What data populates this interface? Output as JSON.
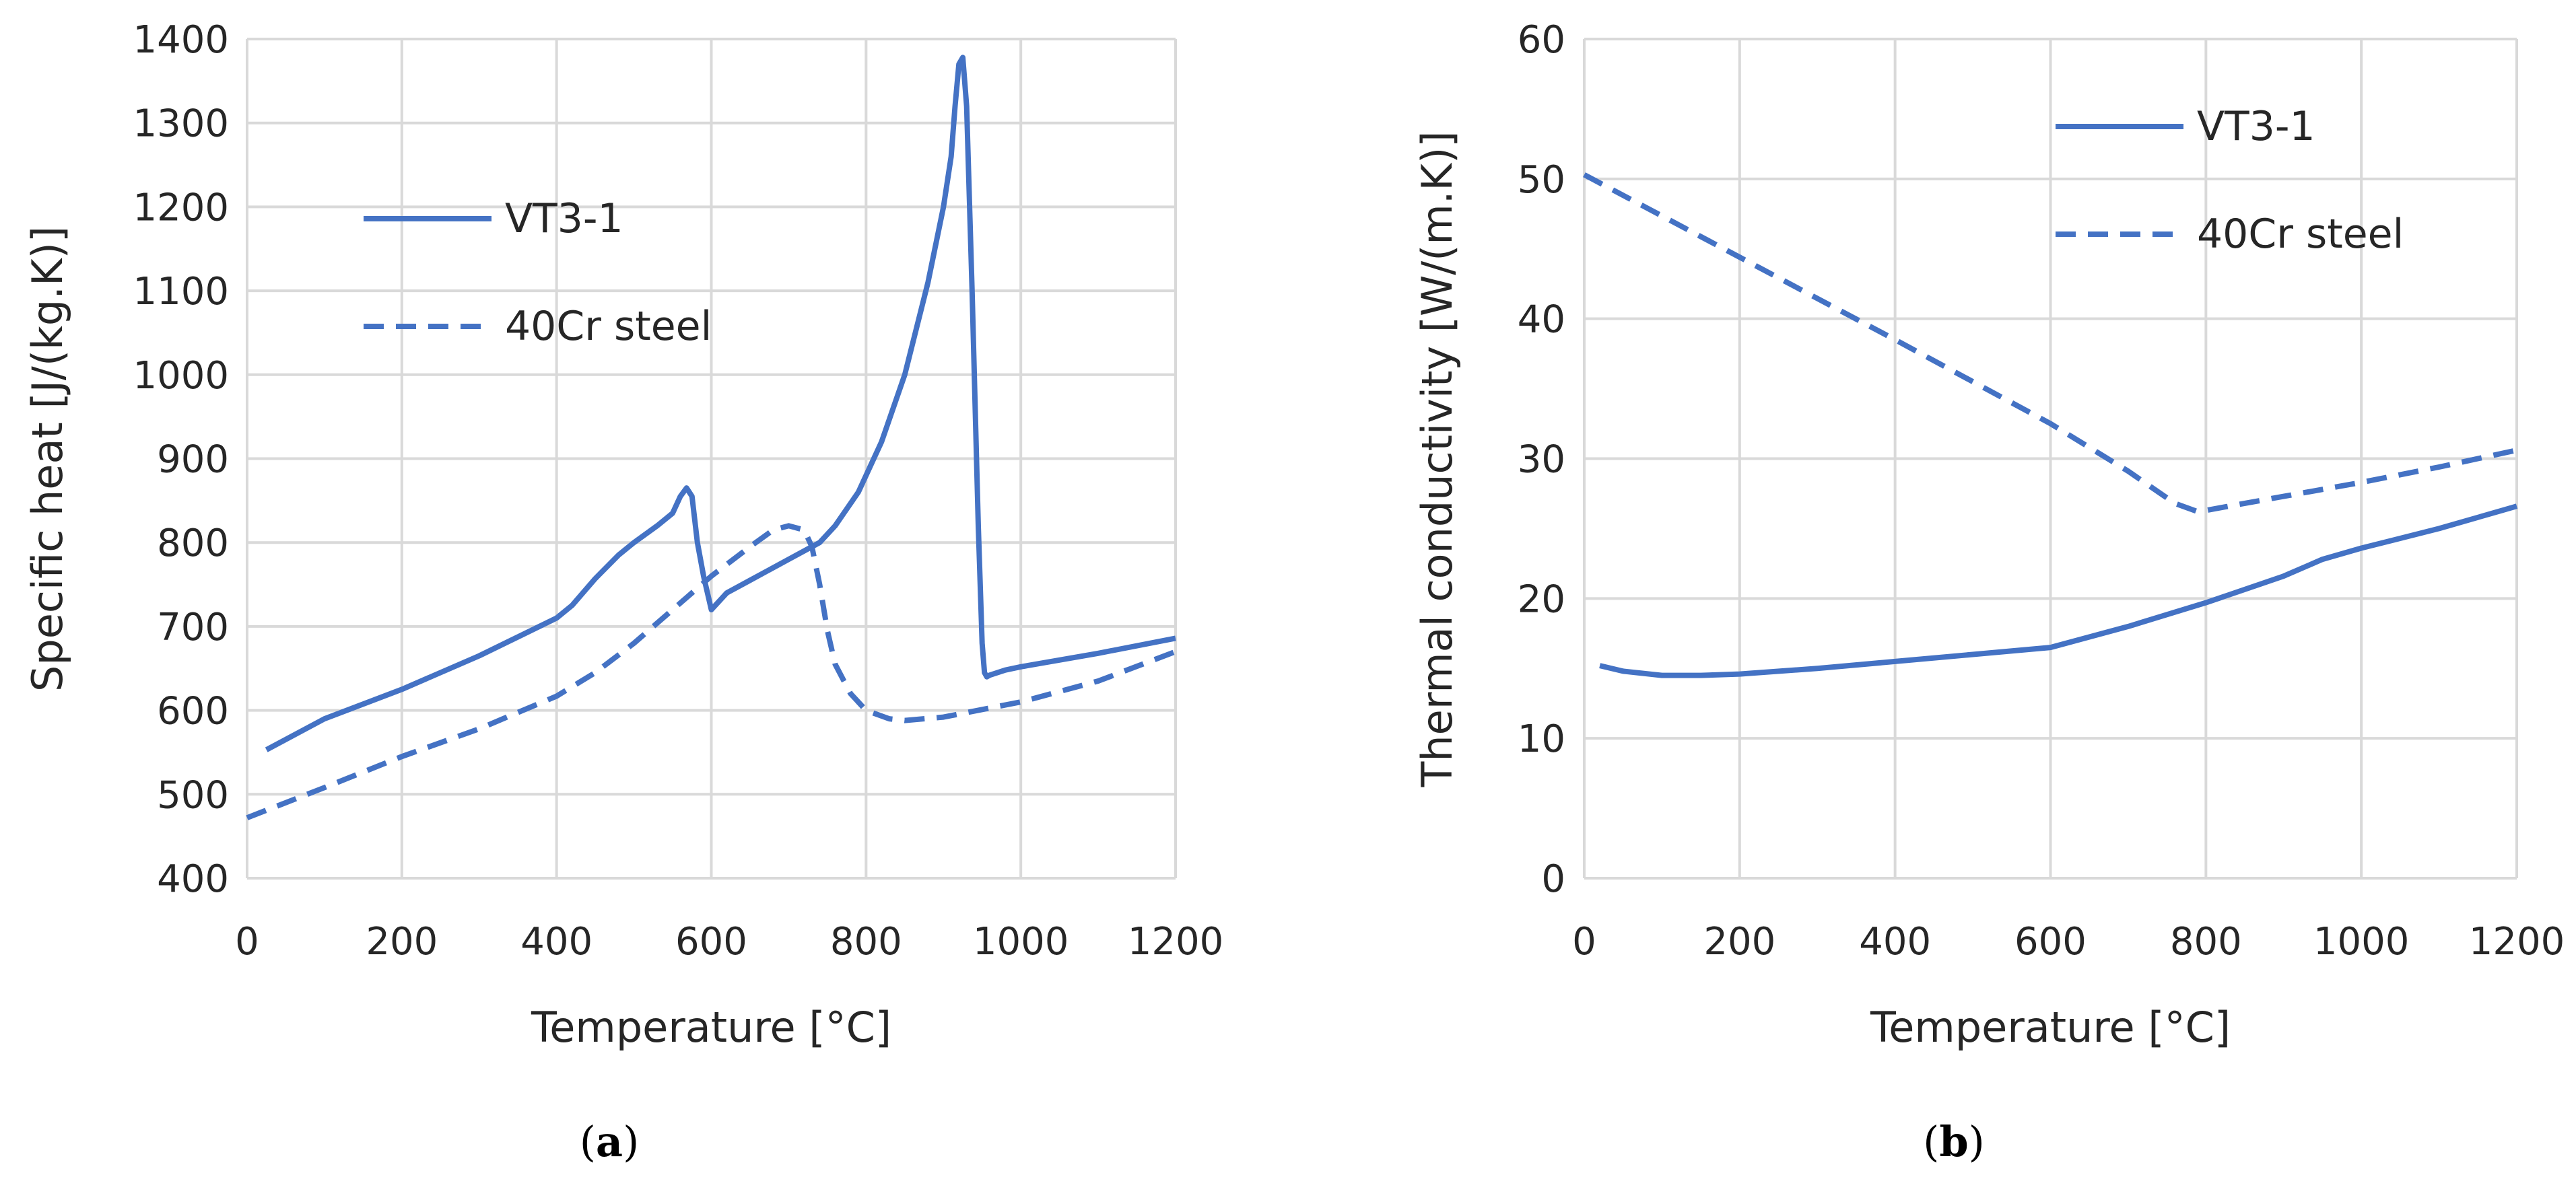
{
  "colors": {
    "series": "#4472c4",
    "grid": "#d9d9d9",
    "text": "#262626"
  },
  "chart_data": [
    {
      "type": "line",
      "panel": "a",
      "caption": {
        "open": "(",
        "letter": "a",
        "close": ")"
      },
      "xlabel": "Temperature [°C]",
      "ylabel": "Specific heat [J/(kg.K)]",
      "xlim": [
        0,
        1200
      ],
      "ylim": [
        400,
        1400
      ],
      "xticks": [
        0,
        200,
        400,
        600,
        800,
        1000,
        1200
      ],
      "yticks": [
        400,
        500,
        600,
        700,
        800,
        900,
        1000,
        1100,
        1200,
        1300,
        1400
      ],
      "grid": true,
      "legend_position": "upper-left",
      "series": [
        {
          "name": "VT3-1",
          "style": "solid",
          "x": [
            25,
            100,
            200,
            300,
            400,
            420,
            450,
            480,
            500,
            530,
            550,
            560,
            568,
            575,
            582,
            590,
            600,
            620,
            650,
            700,
            740,
            760,
            790,
            820,
            850,
            880,
            900,
            910,
            915,
            920,
            925,
            930,
            937,
            945,
            950,
            953,
            956,
            960,
            980,
            1000,
            1100,
            1200
          ],
          "y": [
            553,
            590,
            625,
            665,
            710,
            725,
            757,
            785,
            800,
            820,
            835,
            855,
            865,
            855,
            800,
            760,
            720,
            740,
            755,
            780,
            800,
            820,
            860,
            920,
            1000,
            1110,
            1200,
            1260,
            1320,
            1370,
            1378,
            1320,
            1100,
            820,
            680,
            645,
            640,
            642,
            648,
            652,
            668,
            686
          ]
        },
        {
          "name": "40Cr steel",
          "style": "dashed",
          "x": [
            0,
            100,
            200,
            300,
            400,
            450,
            500,
            550,
            600,
            650,
            680,
            700,
            720,
            730,
            740,
            750,
            760,
            780,
            800,
            830,
            850,
            900,
            1000,
            1100,
            1200
          ],
          "y": [
            472,
            508,
            545,
            578,
            617,
            645,
            680,
            720,
            760,
            795,
            815,
            820,
            815,
            795,
            750,
            695,
            655,
            620,
            600,
            590,
            588,
            592,
            610,
            635,
            670
          ]
        }
      ]
    },
    {
      "type": "line",
      "panel": "b",
      "caption": {
        "open": "(",
        "letter": "b",
        "close": ")"
      },
      "xlabel": "Temperature [°C]",
      "ylabel": "Thermal conductivity [W/(m.K)]",
      "xlim": [
        0,
        1200
      ],
      "ylim": [
        0,
        60
      ],
      "xticks": [
        0,
        200,
        400,
        600,
        800,
        1000,
        1200
      ],
      "yticks": [
        0,
        10,
        20,
        30,
        40,
        50,
        60
      ],
      "grid": true,
      "legend_position": "upper-right",
      "series": [
        {
          "name": "VT3-1",
          "style": "solid",
          "x": [
            20,
            50,
            100,
            150,
            200,
            300,
            400,
            500,
            600,
            700,
            800,
            900,
            950,
            1000,
            1100,
            1200
          ],
          "y": [
            15.2,
            14.8,
            14.5,
            14.5,
            14.6,
            15.0,
            15.5,
            16.0,
            16.5,
            18.0,
            19.7,
            21.6,
            22.8,
            23.6,
            25.0,
            26.6
          ]
        },
        {
          "name": "40Cr steel",
          "style": "dashed",
          "x": [
            0,
            200,
            400,
            600,
            700,
            760,
            790,
            820,
            900,
            1000,
            1100,
            1200
          ],
          "y": [
            50.3,
            44.4,
            38.5,
            32.5,
            29.1,
            26.8,
            26.2,
            26.5,
            27.3,
            28.3,
            29.4,
            30.6
          ]
        }
      ]
    }
  ]
}
